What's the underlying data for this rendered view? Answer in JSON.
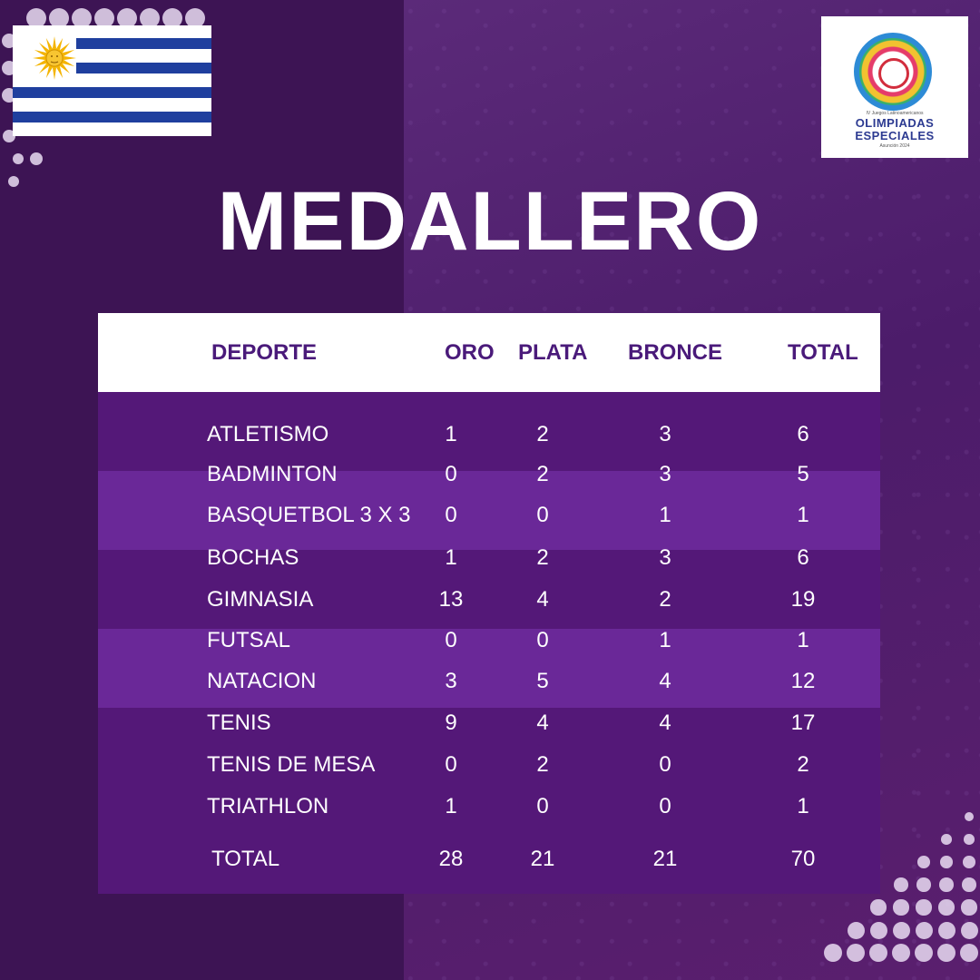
{
  "title": "MEDALLERO",
  "logo": {
    "line1": "IV Juegos Latinoamericanos",
    "line2": "OLIMPIADAS",
    "line3": "ESPECIALES",
    "line4": "Asunción 2024"
  },
  "table": {
    "headers": {
      "sport": "DEPORTE",
      "gold": "ORO",
      "silver": "PLATA",
      "bronze": "BRONCE",
      "total": "TOTAL"
    },
    "rows": [
      {
        "sport": "ATLETISMO",
        "gold": "1",
        "silver": "2",
        "bronze": "3",
        "total": "6"
      },
      {
        "sport": "BADMINTON",
        "gold": "0",
        "silver": "2",
        "bronze": "3",
        "total": "5"
      },
      {
        "sport": "BASQUETBOL 3 X 3",
        "gold": "0",
        "silver": "0",
        "bronze": "1",
        "total": "1"
      },
      {
        "sport": "BOCHAS",
        "gold": "1",
        "silver": "2",
        "bronze": "3",
        "total": "6"
      },
      {
        "sport": "GIMNASIA",
        "gold": "13",
        "silver": "4",
        "bronze": "2",
        "total": "19"
      },
      {
        "sport": "FUTSAL",
        "gold": "0",
        "silver": "0",
        "bronze": "1",
        "total": "1"
      },
      {
        "sport": "NATACION",
        "gold": "3",
        "silver": "5",
        "bronze": "4",
        "total": "12"
      },
      {
        "sport": "TENIS",
        "gold": "9",
        "silver": "4",
        "bronze": "4",
        "total": "17"
      },
      {
        "sport": "TENIS DE MESA",
        "gold": "0",
        "silver": "2",
        "bronze": "0",
        "total": "2"
      },
      {
        "sport": "TRIATHLON",
        "gold": "1",
        "silver": "0",
        "bronze": "0",
        "total": "1"
      }
    ],
    "totals": {
      "label": "TOTAL",
      "gold": "28",
      "silver": "21",
      "bronze": "21",
      "total": "70"
    }
  },
  "colors": {
    "background": "#3d1454",
    "row_dark": "#541878",
    "row_light": "#6a2898",
    "header_text": "#4a1a7a",
    "flag_blue": "#1f3f9e",
    "sun_yellow": "#f4b400"
  },
  "icons": {
    "flag": "uruguay-flag-icon",
    "sun": "sun-of-may-icon",
    "logo": "special-olympics-logo"
  }
}
